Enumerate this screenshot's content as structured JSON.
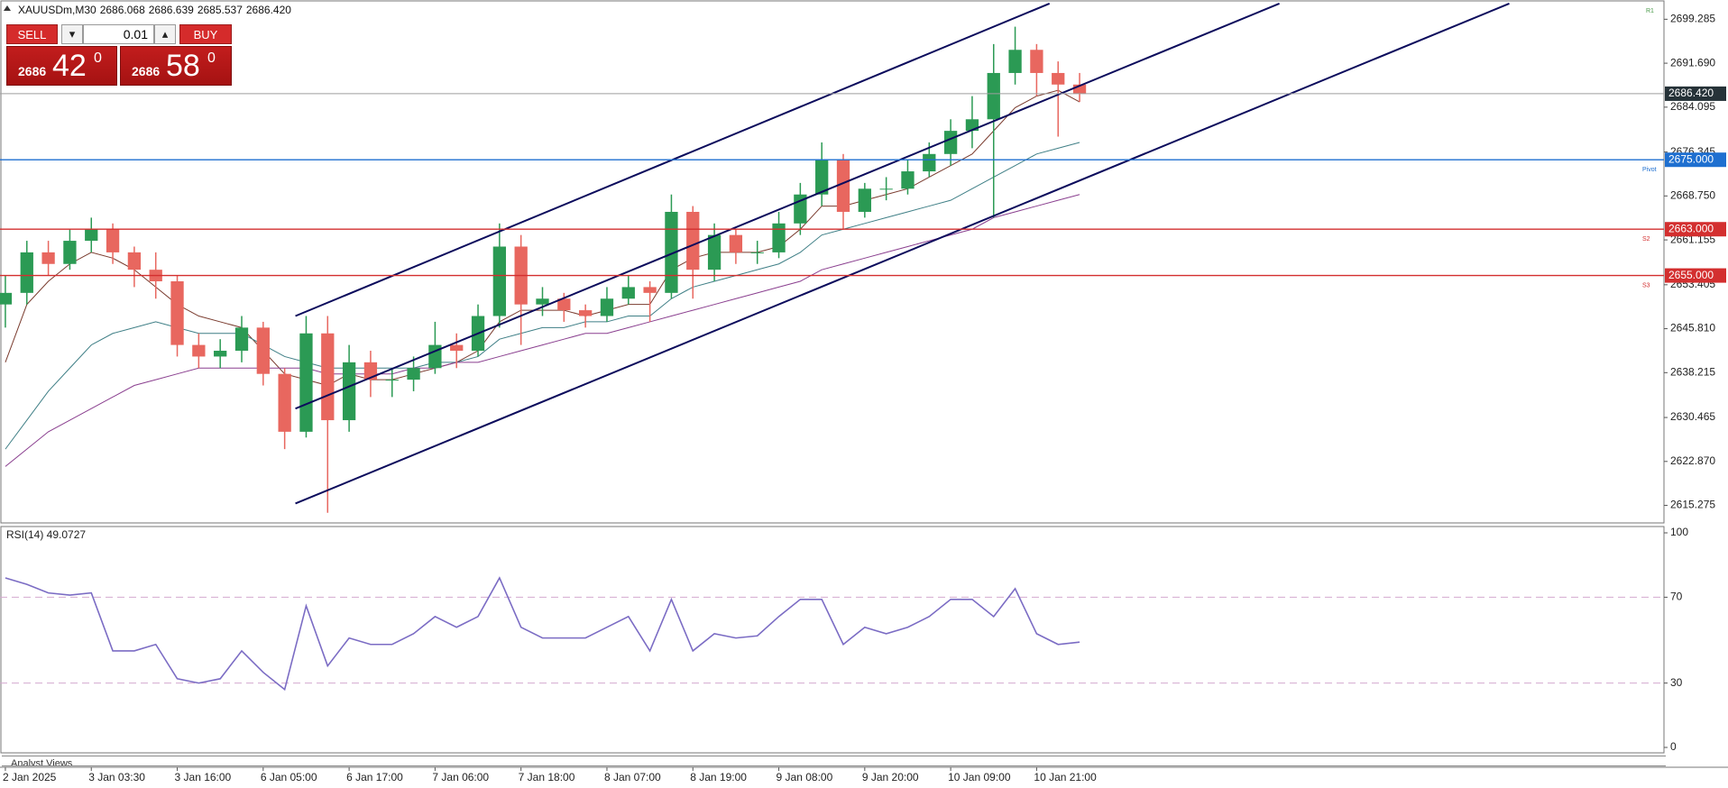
{
  "chart_data": [
    {
      "type": "candlestick",
      "title": "XAUUSDm,M30",
      "quote": [
        "2686.068",
        "2686.639",
        "2685.537",
        "2686.420"
      ],
      "up_color": "#2b9a54",
      "down_color": "#e8675f",
      "open": [
        2650,
        2652,
        2659,
        2657,
        2661,
        2663,
        2659,
        2656,
        2654,
        2643,
        2641,
        2642,
        2646,
        2638,
        2628,
        2645,
        2630,
        2640,
        2637,
        2637,
        2639,
        2643,
        2642,
        2648,
        2660,
        2650,
        2651,
        2649,
        2648,
        2651,
        2653,
        2652,
        2666,
        2656,
        2662,
        2659,
        2659,
        2664,
        2669,
        2675,
        2666,
        2670,
        2670,
        2673,
        2676,
        2680,
        2682,
        2690,
        2694,
        2690,
        2688
      ],
      "high": [
        2655,
        2661,
        2661,
        2663,
        2665,
        2664,
        2660,
        2659,
        2655,
        2645,
        2644,
        2648,
        2647,
        2639,
        2648,
        2648,
        2643,
        2642,
        2639,
        2641,
        2647,
        2645,
        2650,
        2664,
        2662,
        2653,
        2652,
        2650,
        2653,
        2655,
        2654,
        2669,
        2667,
        2664,
        2663,
        2661,
        2666,
        2671,
        2678,
        2676,
        2671,
        2672,
        2675,
        2678,
        2682,
        2686,
        2695,
        2698,
        2695,
        2692,
        2690
      ],
      "low": [
        2646,
        2650,
        2655,
        2656,
        2659,
        2657,
        2653,
        2651,
        2641,
        2639,
        2639,
        2640,
        2636,
        2625,
        2627,
        2614,
        2628,
        2634,
        2634,
        2635,
        2638,
        2639,
        2641,
        2646,
        2643,
        2648,
        2647,
        2646,
        2647,
        2650,
        2647,
        2651,
        2651,
        2654,
        2657,
        2657,
        2658,
        2662,
        2667,
        2663,
        2665,
        2668,
        2669,
        2672,
        2674,
        2677,
        2665,
        2688,
        2686,
        2679,
        2685
      ],
      "close": [
        2652,
        2659,
        2657,
        2661,
        2663,
        2659,
        2656,
        2654,
        2643,
        2641,
        2642,
        2646,
        2638,
        2628,
        2645,
        2630,
        2640,
        2637,
        2637,
        2639,
        2643,
        2642,
        2648,
        2660,
        2650,
        2651,
        2649,
        2648,
        2651,
        2653,
        2652,
        2666,
        2656,
        2662,
        2659,
        2659,
        2664,
        2669,
        2675,
        2666,
        2670,
        2670,
        2673,
        2676,
        2680,
        2682,
        2690,
        2694,
        2690,
        2688,
        2686.42
      ],
      "overlays": [
        {
          "color": "#7a3b2e",
          "values": [
            2640,
            2650,
            2654,
            2657,
            2659,
            2658,
            2656,
            2653,
            2650,
            2648,
            2647,
            2646,
            2642,
            2638,
            2637,
            2636,
            2638,
            2637,
            2637,
            2638,
            2639,
            2640,
            2642,
            2647,
            2649,
            2649,
            2649,
            2648,
            2649,
            2650,
            2650,
            2656,
            2658,
            2659,
            2659,
            2659,
            2660,
            2663,
            2667,
            2667,
            2668,
            2669,
            2670,
            2672,
            2674,
            2676,
            2680,
            2684,
            2686,
            2687,
            2685
          ]
        },
        {
          "color": "#3f7f86",
          "values": [
            2625,
            2630,
            2635,
            2639,
            2643,
            2645,
            2646,
            2647,
            2646,
            2645,
            2645,
            2645,
            2643,
            2641,
            2640,
            2639,
            2639,
            2639,
            2639,
            2639,
            2640,
            2640,
            2641,
            2644,
            2645,
            2646,
            2646,
            2647,
            2647,
            2648,
            2648,
            2651,
            2653,
            2654,
            2655,
            2656,
            2657,
            2659,
            2662,
            2663,
            2664,
            2665,
            2666,
            2667,
            2668,
            2670,
            2672,
            2674,
            2676,
            2677,
            2678
          ]
        },
        {
          "color": "#8a3f8f",
          "values": [
            2622,
            2625,
            2628,
            2630,
            2632,
            2634,
            2636,
            2637,
            2638,
            2639,
            2639,
            2639,
            2639,
            2639,
            2639,
            2638,
            2638,
            2638,
            2638,
            2639,
            2639,
            2640,
            2640,
            2641,
            2642,
            2643,
            2644,
            2645,
            2645,
            2646,
            2647,
            2648,
            2649,
            2650,
            2651,
            2652,
            2653,
            2654,
            2656,
            2657,
            2658,
            2659,
            2660,
            2661,
            2662,
            2663,
            2665,
            2666,
            2667,
            2668,
            2669
          ]
        }
      ],
      "trendlines": [
        {
          "color": "#0b0b5c",
          "x": [
            13.5,
            48.6
          ],
          "y": [
            2648,
            2702
          ]
        },
        {
          "color": "#0b0b5c",
          "x": [
            13.5,
            59.3
          ],
          "y": [
            2632,
            2702
          ]
        },
        {
          "color": "#0b0b5c",
          "x": [
            13.5,
            70
          ],
          "y": [
            2615.6,
            2702
          ]
        }
      ],
      "levels": [
        {
          "value": 2700.7,
          "name": "R1"
        },
        {
          "value": 2675,
          "label": "2675.000",
          "name": "Pivot",
          "color": "#1e6fd0"
        },
        {
          "value": 2663,
          "label": "2663.000",
          "name": "S2",
          "color": "#d32f2f"
        },
        {
          "value": 2655,
          "label": "2655.000",
          "name": "S3",
          "color": "#d32f2f"
        }
      ],
      "last": {
        "value": 2686.42,
        "label": "2686.420",
        "color": "#9e9e9e",
        "tag_color": "#263238"
      },
      "xlim": [
        -0.25,
        77.2
      ],
      "xticks": [
        {
          "value": 0,
          "label": "2 Jan 2025"
        },
        {
          "value": 4,
          "label": "3 Jan 03:30"
        },
        {
          "value": 8,
          "label": "3 Jan 16:00"
        },
        {
          "value": 12,
          "label": "6 Jan 05:00"
        },
        {
          "value": 16,
          "label": "6 Jan 17:00"
        },
        {
          "value": 20,
          "label": "7 Jan 06:00"
        },
        {
          "value": 24,
          "label": "7 Jan 18:00"
        },
        {
          "value": 28,
          "label": "8 Jan 07:00"
        },
        {
          "value": 32,
          "label": "8 Jan 19:00"
        },
        {
          "value": 36,
          "label": "9 Jan 08:00"
        },
        {
          "value": 40,
          "label": "9 Jan 20:00"
        },
        {
          "value": 44,
          "label": "10 Jan 09:00"
        },
        {
          "value": 48,
          "label": "10 Jan 21:00"
        }
      ],
      "ylim": [
        2612.4,
        2702.3
      ],
      "yticks": [
        2699.285,
        {
          "value": 2691.69,
          "label": "2691.690"
        },
        2684.095,
        2676.345,
        {
          "value": 2668.75,
          "label": "2668.750"
        },
        2661.155,
        2653.405,
        {
          "value": 2645.81,
          "label": "2645.810"
        },
        2638.215,
        2630.465,
        {
          "value": 2622.87,
          "label": "2622.870"
        },
        2615.275
      ]
    },
    {
      "type": "line",
      "title": "RSI(14) 49.0727",
      "color": "#7b6cc4",
      "level_color": "#d4a9cf",
      "values": [
        79,
        76,
        72,
        71,
        72,
        45,
        45,
        48,
        32,
        30,
        32,
        45,
        35,
        27,
        66,
        38,
        51,
        48,
        48,
        53,
        61,
        56,
        61,
        79,
        56,
        51,
        51,
        51,
        56,
        61,
        45,
        69,
        45,
        53,
        51,
        52,
        61,
        69,
        69,
        48,
        56,
        53,
        56,
        61,
        69,
        69,
        61,
        74,
        53,
        48,
        49.0727
      ],
      "levels": [
        30,
        70
      ],
      "xlim": [
        -0.25,
        77.2
      ],
      "ylim": [
        0,
        100
      ],
      "yticks": [
        0,
        30,
        70,
        100
      ]
    }
  ],
  "trade_panel": {
    "sell": "SELL",
    "buy": "BUY",
    "lot": "0.01",
    "bid": {
      "small": "2686",
      "big": "42",
      "sup": "0"
    },
    "ask": {
      "small": "2686",
      "big": "58",
      "sup": "0"
    }
  },
  "footer_tab": "Analyst Views"
}
